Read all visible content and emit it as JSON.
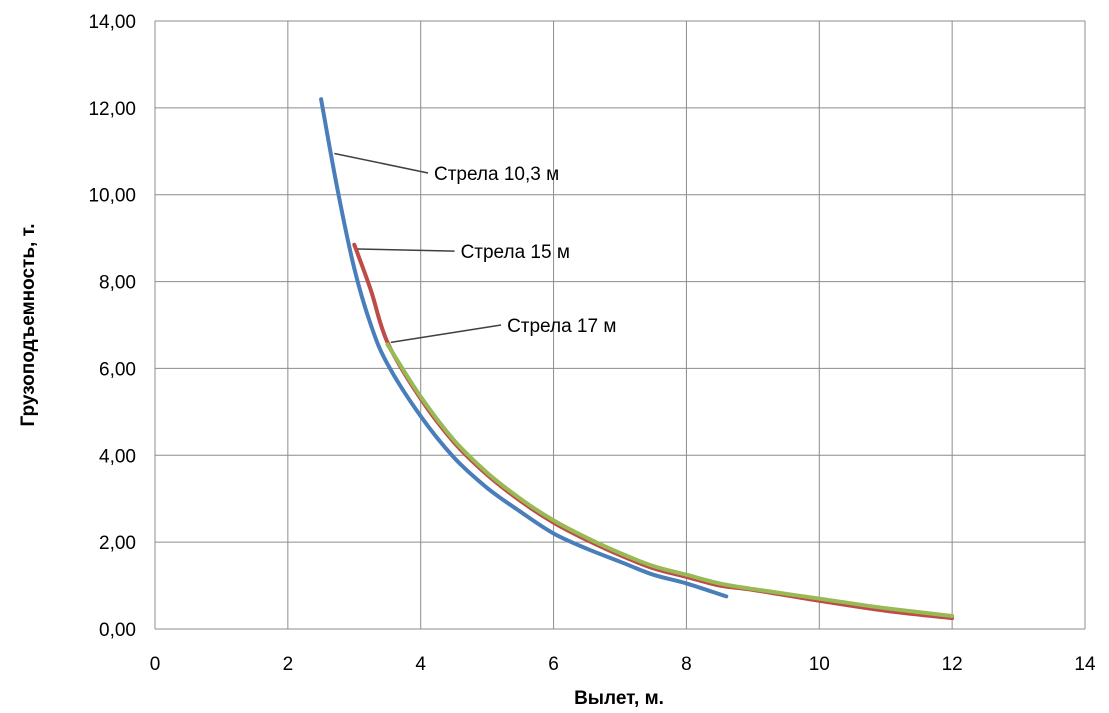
{
  "chart_data": {
    "type": "line",
    "xlabel": "Вылет, м.",
    "ylabel": "Грузоподъемность, т.",
    "xlim": [
      0,
      14
    ],
    "ylim": [
      0,
      14
    ],
    "x_ticks": [
      "0",
      "2",
      "4",
      "6",
      "8",
      "10",
      "12",
      "14"
    ],
    "y_ticks": [
      "0,00",
      "2,00",
      "4,00",
      "6,00",
      "8,00",
      "10,00",
      "12,00",
      "14,00"
    ],
    "grid": true,
    "legend": "none",
    "series": [
      {
        "name": "Стрела 10,3 м",
        "color": "#4a7ebb",
        "points": [
          [
            2.5,
            12.2
          ],
          [
            2.75,
            10.1
          ],
          [
            3.0,
            8.3
          ],
          [
            3.25,
            7.0
          ],
          [
            3.5,
            6.1
          ],
          [
            4.0,
            4.9
          ],
          [
            4.5,
            3.95
          ],
          [
            5.0,
            3.25
          ],
          [
            5.5,
            2.7
          ],
          [
            6.0,
            2.2
          ],
          [
            6.5,
            1.85
          ],
          [
            7.0,
            1.55
          ],
          [
            7.5,
            1.25
          ],
          [
            8.0,
            1.05
          ],
          [
            8.6,
            0.75
          ]
        ]
      },
      {
        "name": "Стрела 15 м",
        "color": "#be4b48",
        "points": [
          [
            3.0,
            8.85
          ],
          [
            3.25,
            7.8
          ],
          [
            3.5,
            6.6
          ],
          [
            4.0,
            5.3
          ],
          [
            4.5,
            4.3
          ],
          [
            5.0,
            3.55
          ],
          [
            5.5,
            2.95
          ],
          [
            6.0,
            2.45
          ],
          [
            6.5,
            2.05
          ],
          [
            7.0,
            1.7
          ],
          [
            7.5,
            1.4
          ],
          [
            8.0,
            1.2
          ],
          [
            8.5,
            1.0
          ],
          [
            9.0,
            0.9
          ],
          [
            10.0,
            0.65
          ],
          [
            11.0,
            0.42
          ],
          [
            12.0,
            0.25
          ]
        ]
      },
      {
        "name": "Стрела 17 м",
        "color": "#98b954",
        "points": [
          [
            3.5,
            6.55
          ],
          [
            4.0,
            5.35
          ],
          [
            4.5,
            4.35
          ],
          [
            5.0,
            3.6
          ],
          [
            5.5,
            3.0
          ],
          [
            6.0,
            2.5
          ],
          [
            6.5,
            2.1
          ],
          [
            7.0,
            1.75
          ],
          [
            7.5,
            1.45
          ],
          [
            8.0,
            1.25
          ],
          [
            8.5,
            1.05
          ],
          [
            9.0,
            0.92
          ],
          [
            10.0,
            0.7
          ],
          [
            11.0,
            0.48
          ],
          [
            12.0,
            0.3
          ]
        ]
      }
    ],
    "annotations": [
      {
        "text": "Стрела 10,3 м",
        "target": [
          2.7,
          10.95
        ],
        "label_at": [
          4.2,
          10.5
        ]
      },
      {
        "text": "Стрела 15 м",
        "target": [
          3.05,
          8.75
        ],
        "label_at": [
          4.6,
          8.7
        ]
      },
      {
        "text": "Стрела 17 м",
        "target": [
          3.55,
          6.6
        ],
        "label_at": [
          5.3,
          7.0
        ]
      }
    ]
  }
}
